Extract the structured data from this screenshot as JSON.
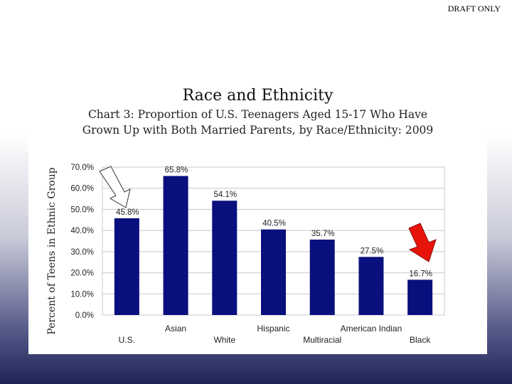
{
  "watermark": "DRAFT ONLY",
  "chart_data": {
    "type": "bar",
    "title": "Race and Ethnicity",
    "subtitle_lines": [
      "Chart 3: Proportion of U.S. Teenagers Aged 15-17 Who Have",
      "Grown Up with Both Married Parents, by Race/Ethnicity: 2009"
    ],
    "ylabel": "Percent of Teens in Ethnic Group",
    "xlabel": "",
    "categories": [
      "U.S.",
      "Asian",
      "White",
      "Hispanic",
      "Multiracial",
      "American Indian",
      "Black"
    ],
    "values": [
      45.8,
      65.8,
      54.1,
      40.5,
      35.7,
      27.5,
      16.7
    ],
    "data_labels": [
      "45.8%",
      "65.8%",
      "54.1%",
      "40.5%",
      "35.7%",
      "27.5%",
      "16.7%"
    ],
    "yticks": [
      "0.0%",
      "10.0%",
      "20.0%",
      "30.0%",
      "40.0%",
      "50.0%",
      "60.0%",
      "70.0%"
    ],
    "ylim": [
      0,
      70
    ],
    "grid": true,
    "bar_color": "#0a0f7e",
    "annotations": [
      {
        "shape": "arrow",
        "style": "white-outline",
        "points_to": "U.S.",
        "color": "#ffffff"
      },
      {
        "shape": "arrow",
        "style": "red",
        "points_to": "Black",
        "color": "#e8140c"
      }
    ]
  }
}
